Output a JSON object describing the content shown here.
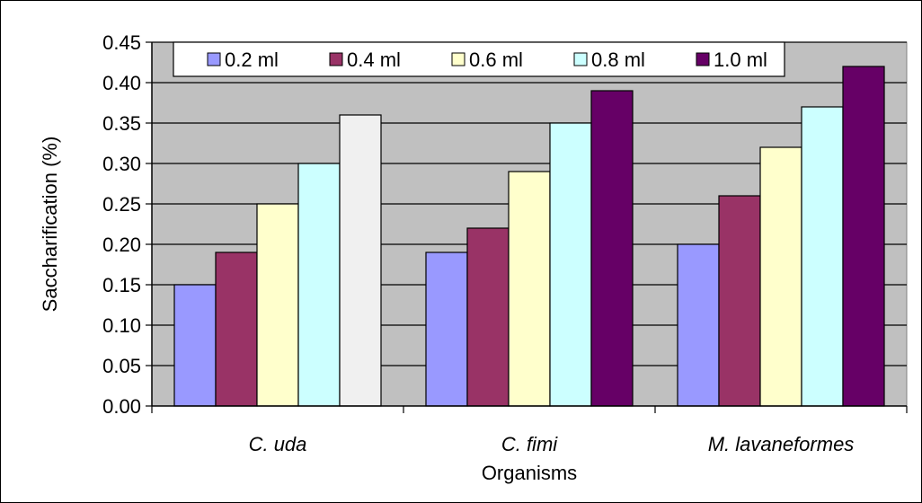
{
  "chart_data": {
    "type": "bar",
    "title": "",
    "xlabel": "Organisms",
    "ylabel": "Saccharification (%)",
    "ylim": [
      0,
      0.45
    ],
    "yticks": [
      "0.00",
      "0.05",
      "0.10",
      "0.15",
      "0.20",
      "0.25",
      "0.30",
      "0.35",
      "0.40",
      "0.45"
    ],
    "grid": true,
    "legend_position": "top",
    "categories": [
      "C. uda",
      "C. fimi",
      "M. lavaneformes"
    ],
    "series": [
      {
        "name": "0.2 ml",
        "color": "#9999ff",
        "values": [
          0.15,
          0.19,
          0.2
        ]
      },
      {
        "name": "0.4 ml",
        "color": "#993366",
        "values": [
          0.19,
          0.22,
          0.26
        ]
      },
      {
        "name": "0.6 ml",
        "color": "#ffffcc",
        "values": [
          0.25,
          0.29,
          0.32
        ]
      },
      {
        "name": "0.8 ml",
        "color": "#ccffff",
        "values": [
          0.3,
          0.35,
          0.37
        ]
      },
      {
        "name": "1.0 ml",
        "color": "#660066",
        "values": [
          0.36,
          0.39,
          0.42
        ]
      }
    ],
    "point_colors": {
      "C. uda": {
        "1.0 ml": "#f0f0f0"
      }
    },
    "plot_background": "#c0c0c0"
  }
}
